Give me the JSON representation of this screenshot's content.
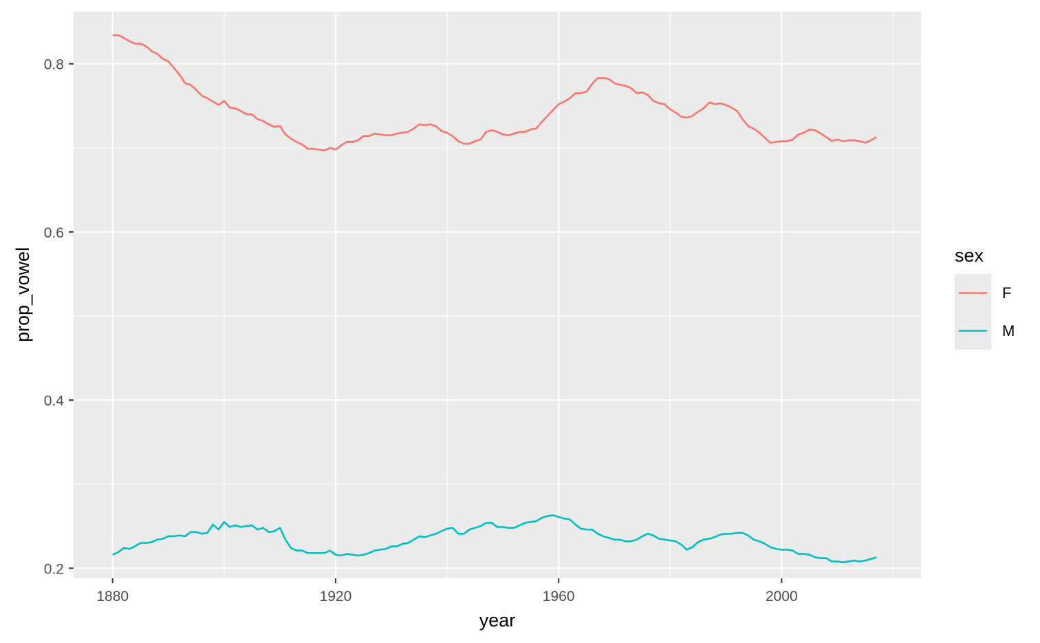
{
  "chart_data": {
    "type": "line",
    "xlabel": "year",
    "ylabel": "prop_vowel",
    "xlim": [
      1873,
      2025
    ],
    "ylim": [
      0.188,
      0.862
    ],
    "x_ticks": [
      1880,
      1920,
      1960,
      2000
    ],
    "x_tick_labels": [
      "1880",
      "1920",
      "1960",
      "2000"
    ],
    "y_ticks": [
      0.2,
      0.4,
      0.6,
      0.8
    ],
    "y_tick_labels": [
      "0.2",
      "0.4",
      "0.6",
      "0.8"
    ],
    "grid": true,
    "legend": {
      "title": "sex",
      "position": "right"
    },
    "x": [
      1880,
      1881,
      1882,
      1883,
      1884,
      1885,
      1886,
      1887,
      1888,
      1889,
      1890,
      1891,
      1892,
      1893,
      1894,
      1895,
      1896,
      1897,
      1898,
      1899,
      1900,
      1901,
      1902,
      1903,
      1904,
      1905,
      1906,
      1907,
      1908,
      1909,
      1910,
      1911,
      1912,
      1913,
      1914,
      1915,
      1916,
      1917,
      1918,
      1919,
      1920,
      1921,
      1922,
      1923,
      1924,
      1925,
      1926,
      1927,
      1928,
      1929,
      1930,
      1931,
      1932,
      1933,
      1934,
      1935,
      1936,
      1937,
      1938,
      1939,
      1940,
      1941,
      1942,
      1943,
      1944,
      1945,
      1946,
      1947,
      1948,
      1949,
      1950,
      1951,
      1952,
      1953,
      1954,
      1955,
      1956,
      1957,
      1958,
      1959,
      1960,
      1961,
      1962,
      1963,
      1964,
      1965,
      1966,
      1967,
      1968,
      1969,
      1970,
      1971,
      1972,
      1973,
      1974,
      1975,
      1976,
      1977,
      1978,
      1979,
      1980,
      1981,
      1982,
      1983,
      1984,
      1985,
      1986,
      1987,
      1988,
      1989,
      1990,
      1991,
      1992,
      1993,
      1994,
      1995,
      1996,
      1997,
      1998,
      1999,
      2000,
      2001,
      2002,
      2003,
      2004,
      2005,
      2006,
      2007,
      2008,
      2009,
      2010,
      2011,
      2012,
      2013,
      2014,
      2015,
      2016,
      2017
    ],
    "series": [
      {
        "name": "F",
        "color": "#F8766D",
        "values": [
          0.834,
          0.834,
          0.831,
          0.827,
          0.824,
          0.824,
          0.821,
          0.815,
          0.812,
          0.806,
          0.803,
          0.795,
          0.787,
          0.777,
          0.775,
          0.769,
          0.762,
          0.759,
          0.755,
          0.751,
          0.756,
          0.748,
          0.747,
          0.744,
          0.74,
          0.74,
          0.734,
          0.732,
          0.728,
          0.725,
          0.726,
          0.716,
          0.711,
          0.707,
          0.704,
          0.699,
          0.699,
          0.698,
          0.697,
          0.7,
          0.698,
          0.703,
          0.707,
          0.707,
          0.709,
          0.714,
          0.714,
          0.717,
          0.716,
          0.715,
          0.715,
          0.717,
          0.718,
          0.719,
          0.723,
          0.728,
          0.727,
          0.728,
          0.726,
          0.72,
          0.718,
          0.714,
          0.708,
          0.705,
          0.705,
          0.708,
          0.71,
          0.719,
          0.721,
          0.719,
          0.716,
          0.715,
          0.717,
          0.719,
          0.719,
          0.722,
          0.723,
          0.731,
          0.738,
          0.745,
          0.752,
          0.755,
          0.759,
          0.765,
          0.765,
          0.767,
          0.776,
          0.783,
          0.783,
          0.782,
          0.777,
          0.775,
          0.774,
          0.771,
          0.765,
          0.766,
          0.763,
          0.756,
          0.753,
          0.752,
          0.746,
          0.742,
          0.737,
          0.736,
          0.738,
          0.743,
          0.747,
          0.754,
          0.752,
          0.753,
          0.751,
          0.748,
          0.744,
          0.734,
          0.726,
          0.723,
          0.718,
          0.712,
          0.706,
          0.707,
          0.708,
          0.708,
          0.71,
          0.716,
          0.718,
          0.722,
          0.721,
          0.717,
          0.713,
          0.708,
          0.71,
          0.708,
          0.709,
          0.709,
          0.708,
          0.706,
          0.709,
          0.713
        ]
      },
      {
        "name": "M",
        "color": "#00BFC4",
        "values": [
          0.216,
          0.219,
          0.224,
          0.223,
          0.226,
          0.23,
          0.23,
          0.231,
          0.234,
          0.235,
          0.238,
          0.238,
          0.239,
          0.238,
          0.243,
          0.243,
          0.241,
          0.242,
          0.252,
          0.246,
          0.255,
          0.249,
          0.251,
          0.249,
          0.25,
          0.251,
          0.246,
          0.248,
          0.243,
          0.244,
          0.248,
          0.234,
          0.224,
          0.221,
          0.221,
          0.218,
          0.218,
          0.218,
          0.218,
          0.221,
          0.216,
          0.215,
          0.217,
          0.216,
          0.215,
          0.216,
          0.218,
          0.221,
          0.222,
          0.223,
          0.226,
          0.226,
          0.229,
          0.23,
          0.234,
          0.238,
          0.237,
          0.239,
          0.241,
          0.244,
          0.247,
          0.248,
          0.241,
          0.241,
          0.246,
          0.248,
          0.25,
          0.254,
          0.254,
          0.249,
          0.249,
          0.248,
          0.248,
          0.251,
          0.254,
          0.255,
          0.256,
          0.26,
          0.262,
          0.263,
          0.261,
          0.259,
          0.258,
          0.252,
          0.247,
          0.246,
          0.246,
          0.241,
          0.238,
          0.236,
          0.234,
          0.234,
          0.232,
          0.232,
          0.234,
          0.238,
          0.241,
          0.239,
          0.235,
          0.234,
          0.233,
          0.232,
          0.228,
          0.222,
          0.225,
          0.231,
          0.234,
          0.235,
          0.237,
          0.24,
          0.241,
          0.241,
          0.242,
          0.242,
          0.239,
          0.234,
          0.232,
          0.229,
          0.225,
          0.223,
          0.222,
          0.222,
          0.221,
          0.217,
          0.217,
          0.216,
          0.213,
          0.212,
          0.212,
          0.208,
          0.208,
          0.207,
          0.208,
          0.209,
          0.208,
          0.209,
          0.211,
          0.213
        ]
      }
    ]
  }
}
